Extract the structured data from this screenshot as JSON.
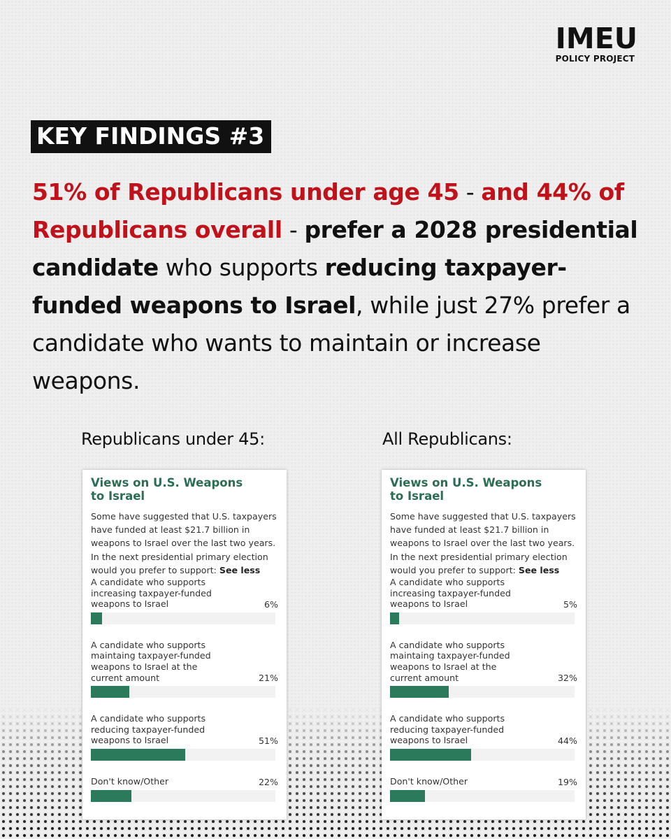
{
  "logo": {
    "main": "IMEU",
    "sub": "POLICY PROJECT"
  },
  "key_label": "KEY FINDINGS #3",
  "headline": {
    "red1": "51% of Republicans under age 45",
    "dash1": " - ",
    "red2": "and 44% of Republicans overall",
    "dash2": " - ",
    "bold1": "prefer a 2028 presidential candidate",
    "plain1": " who supports ",
    "bold2": "reducing taxpayer-funded weapons to Israel",
    "plain2": ", while just 27% prefer a candidate who wants to maintain or increase weapons."
  },
  "colors": {
    "accent_red": "#c0121b",
    "bar_green": "#2c7a5c",
    "title_green": "#2c6e55"
  },
  "chart_data": [
    {
      "type": "bar",
      "panel_label": "Republicans under 45:",
      "title": "Views on U.S. Weapons to Israel",
      "question": "Some have suggested that U.S. taxpayers have funded at least $21.7 billion in weapons to Israel over the last two years. In the next presidential primary election would you prefer to support:",
      "see_less": "See less",
      "categories": [
        "A candidate who supports increasing taxpayer-funded weapons to Israel",
        "A candidate who supports maintaing taxpayer-funded weapons to Israel at the current amount",
        "A candidate who supports reducing taxpayer-funded weapons to Israel",
        "Don't know/Other"
      ],
      "values": [
        6,
        21,
        51,
        22
      ],
      "value_labels": [
        "6%",
        "21%",
        "51%",
        "22%"
      ],
      "xlim": [
        0,
        100
      ]
    },
    {
      "type": "bar",
      "panel_label": "All Republicans:",
      "title": "Views on U.S. Weapons to Israel",
      "question": "Some have suggested that U.S. taxpayers have funded at least $21.7 billion in weapons to Israel over the last two years. In the next presidential primary election would you prefer to support:",
      "see_less": "See less",
      "categories": [
        "A candidate who supports increasing taxpayer-funded weapons to Israel",
        "A candidate who supports maintaing taxpayer-funded weapons to Israel at the current amount",
        "A candidate who supports reducing taxpayer-funded weapons to Israel",
        "Don't know/Other"
      ],
      "values": [
        5,
        32,
        44,
        19
      ],
      "value_labels": [
        "5%",
        "32%",
        "44%",
        "19%"
      ],
      "xlim": [
        0,
        100
      ]
    }
  ]
}
